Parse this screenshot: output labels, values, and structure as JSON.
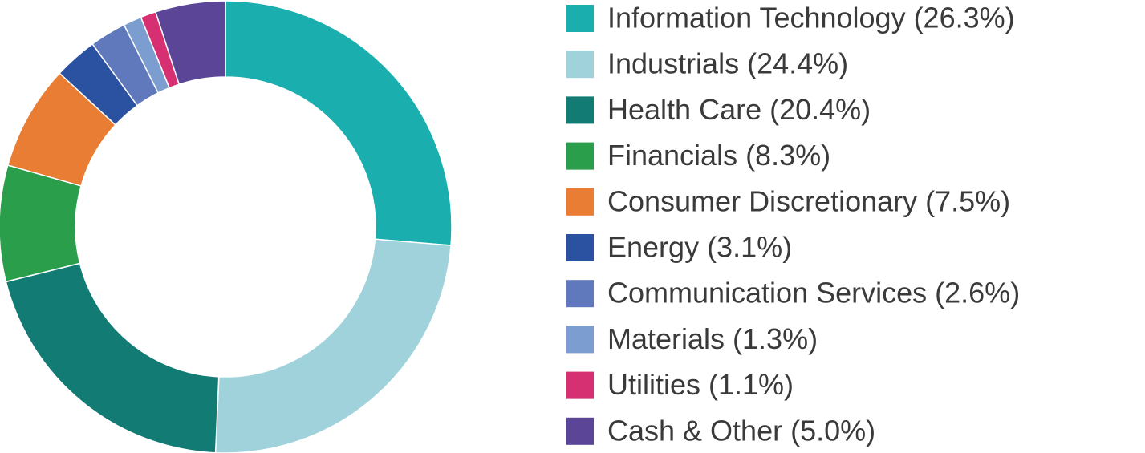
{
  "chart_data": {
    "type": "donut",
    "categories": [
      "Information Technology (26.3%)",
      "Industrials (24.4%)",
      "Health Care (20.4%)",
      "Financials (8.3%)",
      "Consumer Discretionary (7.5%)",
      "Energy (3.1%)",
      "Communication Services (2.6%)",
      "Materials (1.3%)",
      "Utilities (1.1%)",
      "Cash & Other (5.0%)"
    ],
    "values": [
      26.3,
      24.4,
      20.4,
      8.3,
      7.5,
      3.1,
      2.6,
      1.3,
      1.1,
      5.0
    ],
    "colors": [
      "#1aaeae",
      "#9fd2db",
      "#127c74",
      "#2a9e4a",
      "#ea7d34",
      "#2b52a0",
      "#6079bd",
      "#7b9dd0",
      "#d62f72",
      "#5a4597"
    ],
    "legend": "right"
  }
}
